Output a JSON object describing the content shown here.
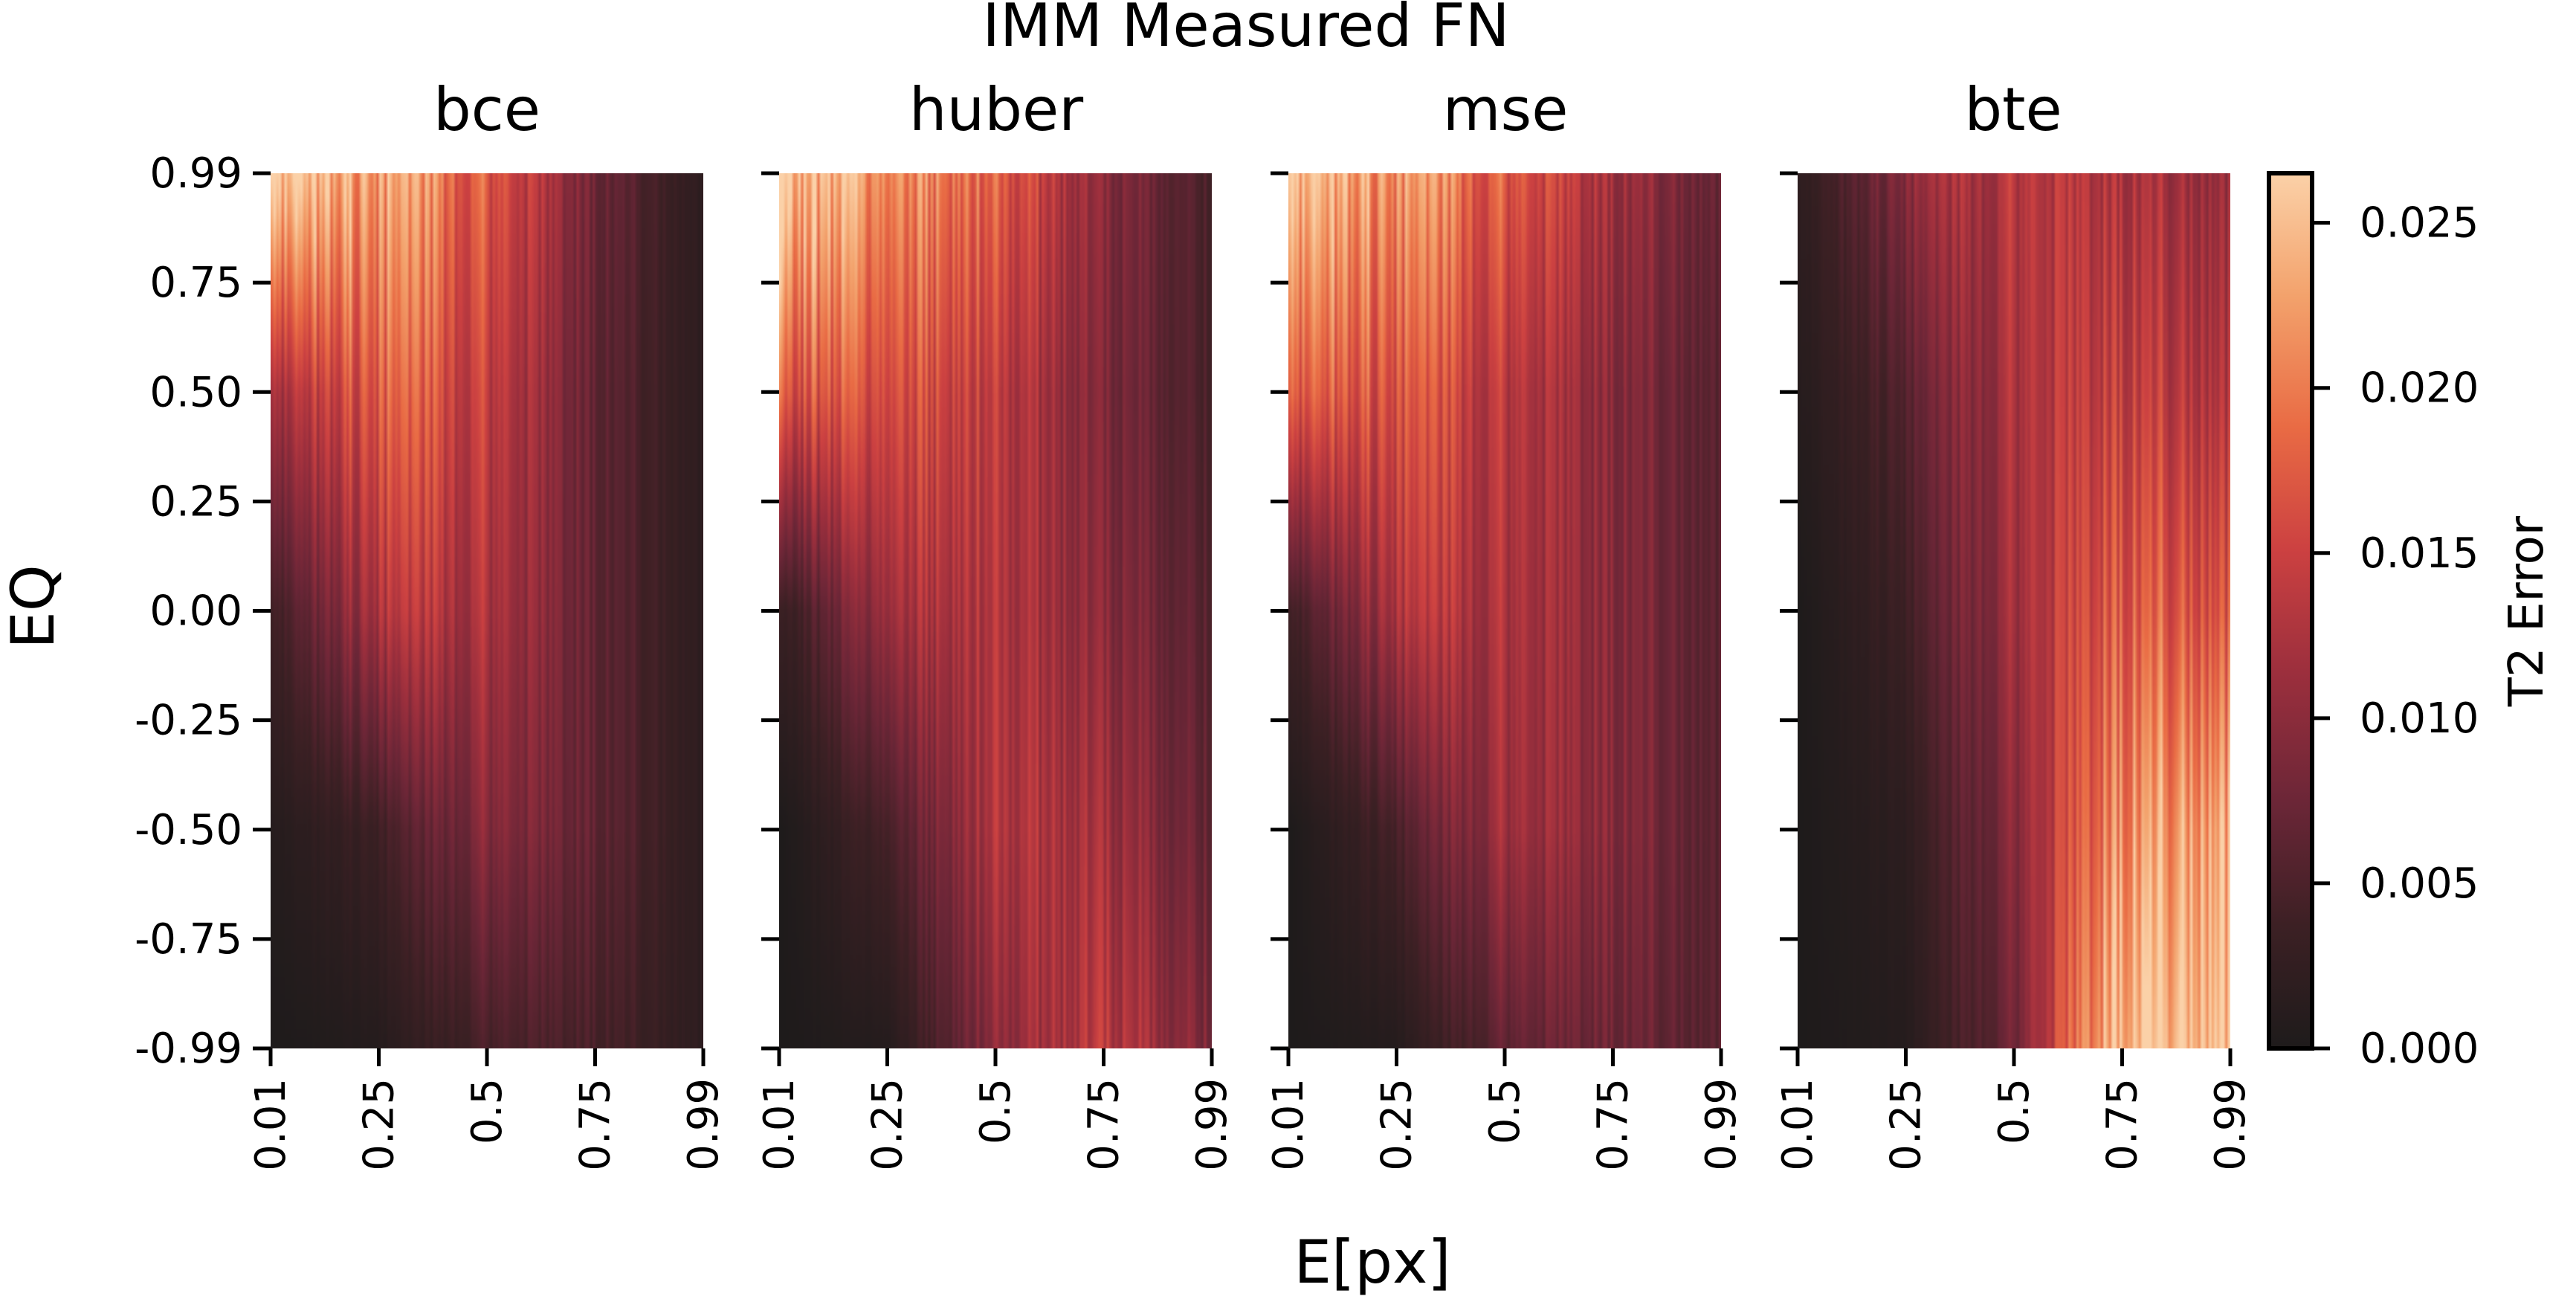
{
  "figure": {
    "title": "IMM Measured FN",
    "xlabel": "E[px]",
    "ylabel": "EQ"
  },
  "colorbar": {
    "label": "T2 Error",
    "ticks": [
      "0.000",
      "0.005",
      "0.010",
      "0.015",
      "0.020",
      "0.025"
    ],
    "tick_values": [
      0.0,
      0.005,
      0.01,
      0.015,
      0.02,
      0.025
    ],
    "range": [
      0.0,
      0.0265
    ],
    "colormap": [
      "#1e1b1b",
      "#3c2024",
      "#6b2637",
      "#9c2f3d",
      "#cc4141",
      "#e96b44",
      "#f3a26c",
      "#fbd1a8"
    ]
  },
  "chart_data": {
    "type": "heatmap",
    "title": "IMM Measured FN",
    "xlabel": "E[px]",
    "ylabel": "EQ",
    "colorbar_label": "T2 Error",
    "x_ticks": [
      "0.01",
      "0.25",
      "0.5",
      "0.75",
      "0.99"
    ],
    "y_ticks": [
      "0.99",
      "0.75",
      "0.50",
      "0.25",
      "0.00",
      "-0.25",
      "-0.50",
      "-0.75",
      "-0.99"
    ],
    "x_range": [
      0.01,
      0.99
    ],
    "y_range": [
      -0.99,
      0.99
    ],
    "value_range": [
      0.0,
      0.0265
    ],
    "panels": [
      {
        "title": "bce",
        "approx_grid_x": [
          0.01,
          0.25,
          0.5,
          0.75,
          0.99
        ],
        "approx_grid_y": [
          0.99,
          0.5,
          0.0,
          -0.5,
          -0.99
        ],
        "approx_values": [
          [
            0.027,
            0.023,
            0.018,
            0.008,
            0.002
          ],
          [
            0.012,
            0.018,
            0.015,
            0.007,
            0.002
          ],
          [
            0.004,
            0.013,
            0.013,
            0.007,
            0.002
          ],
          [
            0.001,
            0.004,
            0.01,
            0.007,
            0.002
          ],
          [
            0.0,
            0.001,
            0.005,
            0.005,
            0.002
          ]
        ]
      },
      {
        "title": "huber",
        "approx_grid_x": [
          0.01,
          0.25,
          0.5,
          0.75,
          0.99
        ],
        "approx_grid_y": [
          0.99,
          0.5,
          0.0,
          -0.5,
          -0.99
        ],
        "approx_values": [
          [
            0.027,
            0.022,
            0.018,
            0.01,
            0.005
          ],
          [
            0.017,
            0.017,
            0.014,
            0.009,
            0.005
          ],
          [
            0.003,
            0.012,
            0.013,
            0.01,
            0.006
          ],
          [
            0.0,
            0.005,
            0.013,
            0.012,
            0.007
          ],
          [
            0.0,
            0.001,
            0.01,
            0.014,
            0.009
          ]
        ]
      },
      {
        "title": "mse",
        "approx_grid_x": [
          0.01,
          0.25,
          0.5,
          0.75,
          0.99
        ],
        "approx_grid_y": [
          0.99,
          0.5,
          0.0,
          -0.5,
          -0.99
        ],
        "approx_values": [
          [
            0.026,
            0.022,
            0.018,
            0.012,
            0.007
          ],
          [
            0.018,
            0.017,
            0.014,
            0.01,
            0.006
          ],
          [
            0.004,
            0.013,
            0.013,
            0.01,
            0.006
          ],
          [
            0.0,
            0.005,
            0.012,
            0.01,
            0.006
          ],
          [
            0.0,
            0.001,
            0.007,
            0.008,
            0.006
          ]
        ]
      },
      {
        "title": "bte",
        "approx_grid_x": [
          0.01,
          0.25,
          0.5,
          0.75,
          0.99
        ],
        "approx_grid_y": [
          0.99,
          0.5,
          0.0,
          -0.5,
          -0.99
        ],
        "approx_values": [
          [
            0.002,
            0.01,
            0.014,
            0.013,
            0.011
          ],
          [
            0.001,
            0.006,
            0.013,
            0.015,
            0.013
          ],
          [
            0.0,
            0.004,
            0.012,
            0.018,
            0.017
          ],
          [
            0.0,
            0.002,
            0.01,
            0.022,
            0.024
          ],
          [
            0.0,
            0.001,
            0.008,
            0.027,
            0.027
          ]
        ]
      }
    ]
  }
}
